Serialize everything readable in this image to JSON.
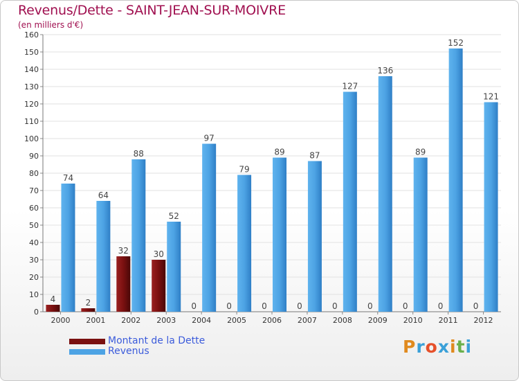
{
  "header": {
    "title": "Revenus/Dette - SAINT-JEAN-SUR-MOIVRE",
    "subtitle": "(en milliers d'€)"
  },
  "legend": {
    "debt_label": "Montant de la Dette",
    "revenue_label": "Revenus"
  },
  "logo": {
    "letters": [
      "P",
      "r",
      "o",
      "x",
      "i",
      "t",
      "i"
    ],
    "colors": [
      "#e08a1e",
      "#3aa0d8",
      "#e6502a",
      "#3aa0d8",
      "#e08a1e",
      "#6ab04c",
      "#3aa0d8"
    ]
  },
  "colors": {
    "debt": "#7a1010",
    "revenue": "#4da3e4",
    "title": "#a01050",
    "legend_text": "#3b5bdb"
  },
  "chart_data": {
    "type": "bar",
    "title": "Revenus/Dette - SAINT-JEAN-SUR-MOIVRE",
    "ylabel": "(en milliers d'€)",
    "xlabel": "",
    "categories": [
      "2000",
      "2001",
      "2002",
      "2003",
      "2004",
      "2005",
      "2006",
      "2007",
      "2008",
      "2009",
      "2010",
      "2011",
      "2012"
    ],
    "series": [
      {
        "name": "Montant de la Dette",
        "values": [
          4,
          2,
          32,
          30,
          0,
          0,
          0,
          0,
          0,
          0,
          0,
          0,
          0
        ]
      },
      {
        "name": "Revenus",
        "values": [
          74,
          64,
          88,
          52,
          97,
          79,
          89,
          87,
          127,
          136,
          89,
          152,
          121
        ]
      }
    ],
    "ylim": [
      0,
      160
    ],
    "yticks": [
      0,
      10,
      20,
      30,
      40,
      50,
      60,
      70,
      80,
      90,
      100,
      110,
      120,
      130,
      140,
      150,
      160
    ],
    "grid": true,
    "legend": "bottom-left"
  }
}
